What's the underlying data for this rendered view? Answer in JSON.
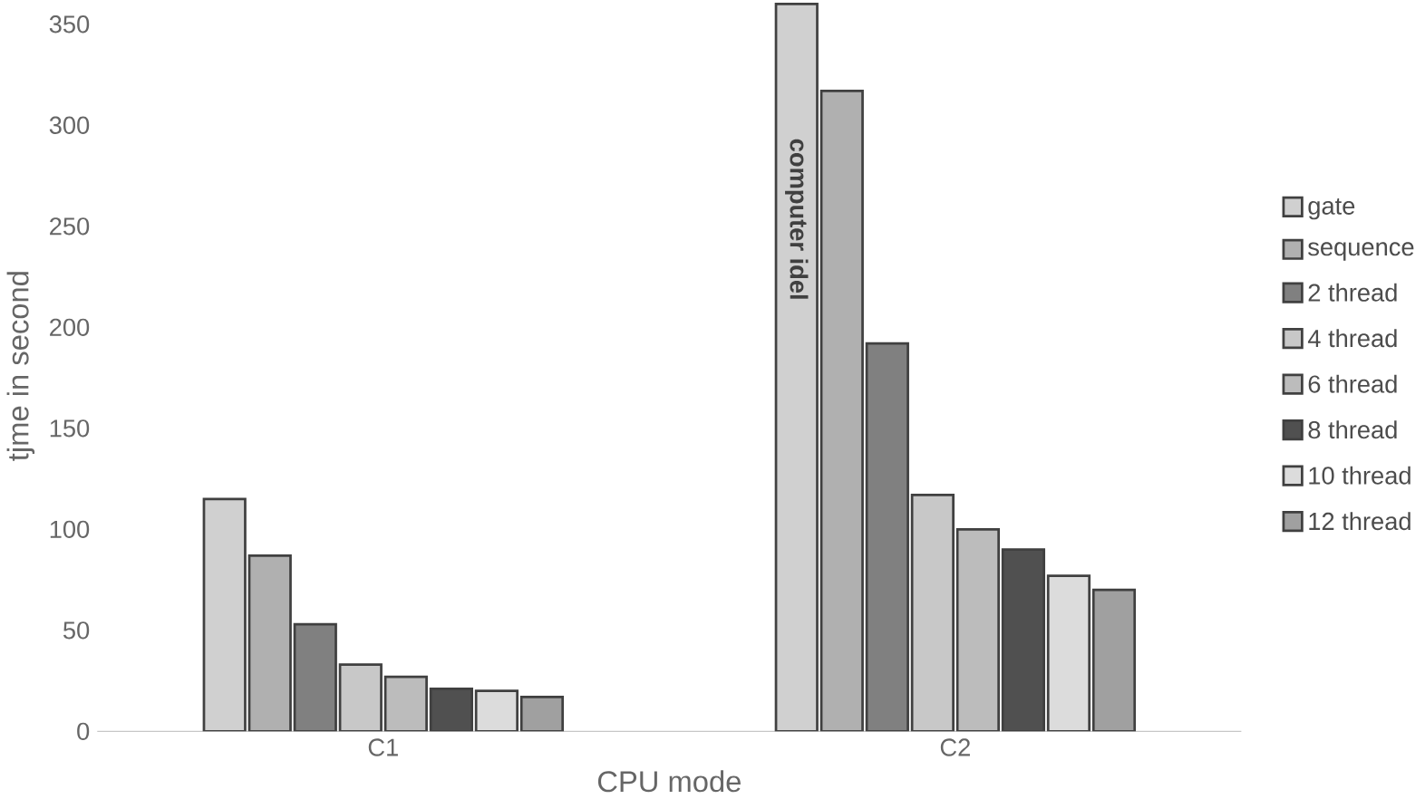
{
  "chart_data": {
    "type": "bar",
    "xlabel": "CPU mode",
    "ylabel": "tjme in second",
    "categories": [
      "C1",
      "C2"
    ],
    "series": [
      {
        "name": "gate",
        "color": "#d0d0d0",
        "values": [
          115,
          360
        ]
      },
      {
        "name": "sequence",
        "color": "#b0b0b0",
        "values": [
          87,
          317
        ]
      },
      {
        "name": "2 thread",
        "color": "#808080",
        "values": [
          53,
          192
        ]
      },
      {
        "name": "4 thread",
        "color": "#c8c8c8",
        "values": [
          33,
          117
        ]
      },
      {
        "name": "6 thread",
        "color": "#bcbcbc",
        "values": [
          27,
          100
        ]
      },
      {
        "name": "8 thread",
        "color": "#505050",
        "values": [
          21,
          90
        ]
      },
      {
        "name": "10 thread",
        "color": "#dcdcdc",
        "values": [
          20,
          77
        ]
      },
      {
        "name": "12 thread",
        "color": "#a0a0a0",
        "values": [
          17,
          70
        ]
      }
    ],
    "ylim": [
      0,
      362
    ],
    "yticks": [
      0,
      50,
      100,
      150,
      200,
      250,
      300,
      350
    ],
    "legend": "right",
    "grid": false,
    "annotations": [
      "computer idel"
    ]
  }
}
